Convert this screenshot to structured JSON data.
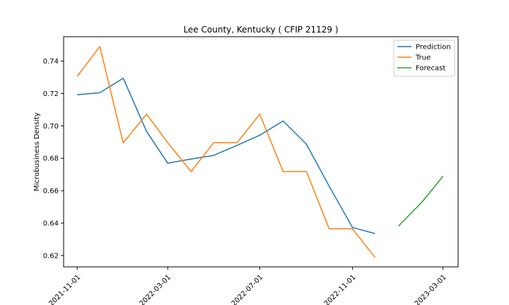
{
  "chart_data": {
    "type": "line",
    "title": "Lee County, Kentucky ( CFIP 21129 )",
    "xlabel": "",
    "ylabel": "Microbusiness Density",
    "x_ticks": [
      "2021-11-01",
      "2022-03-01",
      "2022-07-01",
      "2022-11-01",
      "2023-03-01"
    ],
    "y_ticks": [
      "0.62",
      "0.64",
      "0.66",
      "0.68",
      "0.70",
      "0.72",
      "0.74"
    ],
    "ylim": [
      0.613,
      0.755
    ],
    "xlim": [
      "2021-10-14",
      "2023-03-21"
    ],
    "grid": false,
    "legend_position": "top-right",
    "series": [
      {
        "name": "Prediction",
        "color": "#1f77b4",
        "x": [
          "2021-11-01",
          "2021-12-01",
          "2022-01-01",
          "2022-02-01",
          "2022-03-01",
          "2022-04-01",
          "2022-05-01",
          "2022-06-01",
          "2022-07-01",
          "2022-08-01",
          "2022-09-01",
          "2022-10-01",
          "2022-11-01",
          "2022-12-01"
        ],
        "values": [
          0.7192,
          0.7204,
          0.7294,
          0.6965,
          0.677,
          0.6795,
          0.6818,
          0.688,
          0.6942,
          0.703,
          0.6886,
          0.6628,
          0.6373,
          0.6335
        ]
      },
      {
        "name": "True",
        "color": "#ff7f0e",
        "x": [
          "2021-11-01",
          "2021-12-01",
          "2022-01-01",
          "2022-02-01",
          "2022-03-01",
          "2022-04-01",
          "2022-05-01",
          "2022-06-01",
          "2022-07-01",
          "2022-08-01",
          "2022-09-01",
          "2022-10-01",
          "2022-11-01",
          "2022-12-01"
        ],
        "values": [
          0.7305,
          0.749,
          0.6895,
          0.7072,
          0.6896,
          0.6718,
          0.6896,
          0.6896,
          0.7072,
          0.6718,
          0.6718,
          0.6365,
          0.6365,
          0.6187
        ]
      },
      {
        "name": "Forecast",
        "color": "#2ca02c",
        "x": [
          "2023-01-01",
          "2023-02-01",
          "2023-03-01"
        ],
        "values": [
          0.6382,
          0.6529,
          0.669
        ]
      }
    ]
  }
}
